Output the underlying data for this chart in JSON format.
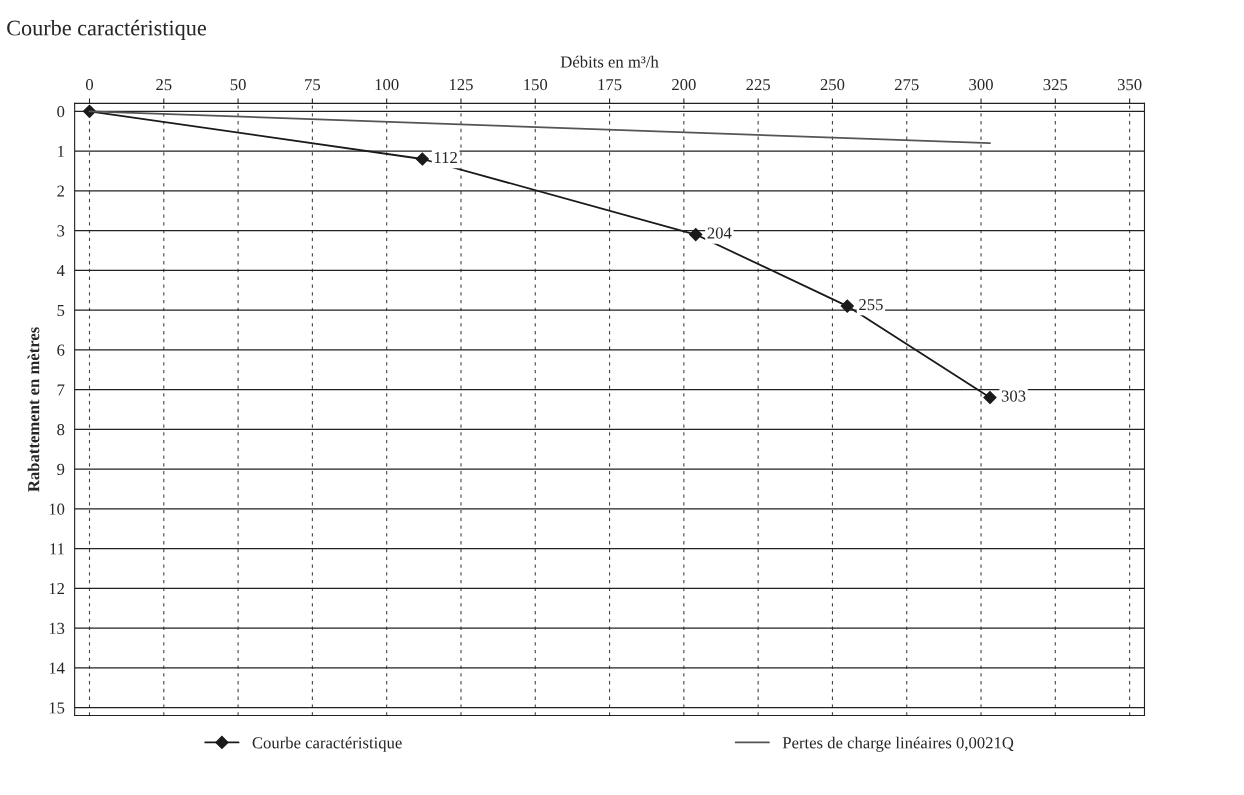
{
  "chart_data": {
    "type": "line",
    "title": "Courbe caractéristique",
    "xlabel": "Débits en m³/h",
    "ylabel": "Rabattement en mètres",
    "xlim": [
      -5,
      355
    ],
    "xticks": [
      0,
      25,
      50,
      75,
      100,
      125,
      150,
      175,
      200,
      225,
      250,
      275,
      300,
      325,
      350
    ],
    "ylim": [
      15.2,
      -0.2
    ],
    "yticks": [
      0,
      1,
      2,
      3,
      4,
      5,
      6,
      7,
      8,
      9,
      10,
      11,
      12,
      13,
      14,
      15
    ],
    "series": [
      {
        "name": "Courbe caractéristique",
        "color": "#1a1a1a",
        "marker": "diamond",
        "x": [
          0,
          112,
          204,
          255,
          303
        ],
        "values": [
          0,
          1.2,
          3.1,
          4.9,
          7.2
        ]
      },
      {
        "name": "Pertes de charge linéaires 0,0021Q",
        "color": "#555555",
        "marker": "none",
        "x": [
          0,
          303
        ],
        "values": [
          0,
          0.8
        ]
      }
    ],
    "annotations": [
      {
        "text": "112",
        "x": 112,
        "y": 1.2
      },
      {
        "text": "204",
        "x": 204,
        "y": 3.1
      },
      {
        "text": "255",
        "x": 255,
        "y": 4.9
      },
      {
        "text": "303",
        "x": 303,
        "y": 7.2
      }
    ],
    "grid": true,
    "legend": "bottom"
  }
}
